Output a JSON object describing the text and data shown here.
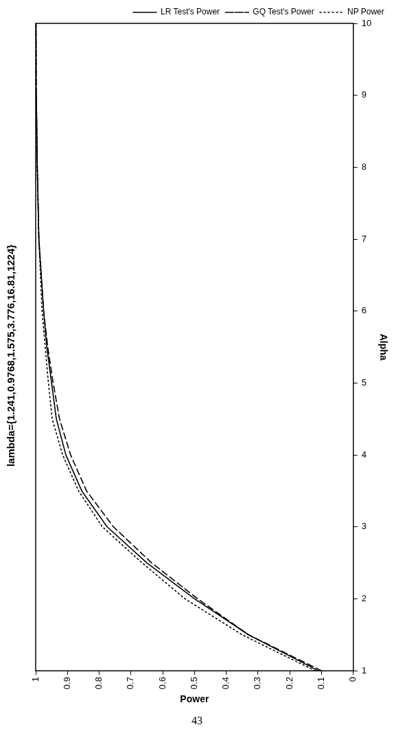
{
  "chart_data": {
    "type": "line",
    "title": "lambda={1.241,0.9768,1.575,3.776,16.81,1224}",
    "xlabel": "Power",
    "ylabel": "Alpha",
    "series": [
      {
        "name": "LR Test's Power",
        "color": "#000000",
        "line_style": "solid",
        "x": [
          0.11,
          0.33,
          0.5,
          0.65,
          0.775,
          0.855,
          0.905,
          0.935,
          0.95,
          0.965,
          0.975,
          0.99,
          0.995,
          0.998,
          0.999
        ],
        "values": [
          1,
          1.5,
          2,
          2.5,
          3,
          3.5,
          4,
          4.5,
          5,
          5.5,
          6,
          7,
          8,
          9,
          10
        ]
      },
      {
        "name": "GQ Test's Power",
        "color": "#000000",
        "line_style": "dashed",
        "x": [
          0.1,
          0.33,
          0.49,
          0.635,
          0.755,
          0.84,
          0.89,
          0.925,
          0.945,
          0.962,
          0.975,
          0.99,
          0.995,
          0.998,
          0.999
        ],
        "values": [
          1,
          1.5,
          2,
          2.5,
          3,
          3.5,
          4,
          4.5,
          5,
          5.5,
          6,
          7,
          8,
          9,
          10
        ]
      },
      {
        "name": "NP Power",
        "color": "#000000",
        "line_style": "dotted",
        "x": [
          0.12,
          0.35,
          0.53,
          0.665,
          0.79,
          0.865,
          0.915,
          0.948,
          0.96,
          0.97,
          0.98,
          0.99,
          0.995,
          0.998,
          0.999
        ],
        "values": [
          1,
          1.5,
          2,
          2.5,
          3,
          3.5,
          4,
          4.5,
          5,
          5.5,
          6,
          7,
          8,
          9,
          10
        ]
      }
    ],
    "xlim": [
      1,
      0
    ],
    "xticks": [
      0,
      0.1,
      0.2,
      0.3,
      0.4,
      0.5,
      0.6,
      0.7,
      0.8,
      0.9,
      1
    ],
    "ylim": [
      1,
      10
    ],
    "yticks": [
      1,
      2,
      3,
      4,
      5,
      6,
      7,
      8,
      9,
      10
    ],
    "grid": false,
    "legend": "top right",
    "annotations": [
      "43"
    ]
  }
}
